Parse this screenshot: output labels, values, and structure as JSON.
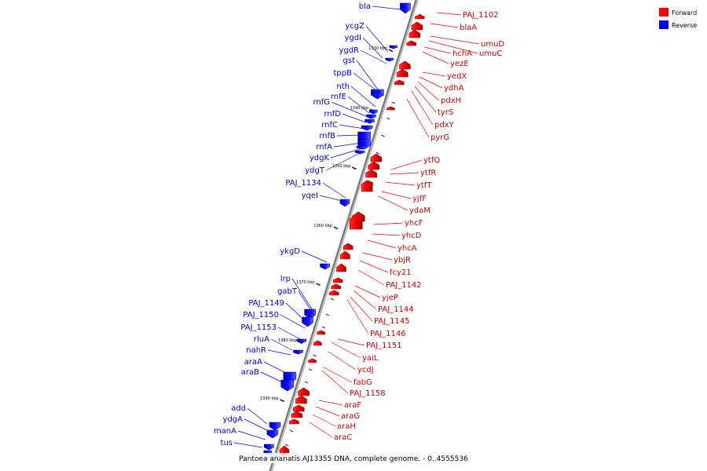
{
  "caption": "Pantoea ananatis AJ13355 DNA, complete genome. - 0..4555536",
  "legend": {
    "forward_label": "Forward",
    "reverse_label": "Reverse",
    "forward_color": "#ff0000",
    "reverse_color": "#0000ff"
  },
  "ticks": [
    "1330 kbp",
    "1340 kbp",
    "1350 kbp",
    "1360 kbp",
    "1370 kbp",
    "1380 kbp",
    "1390 kbp"
  ],
  "reverse_genes": [
    "bla",
    "ycgZ",
    "ygdI",
    "ygdR",
    "gst",
    "tppB",
    "nth",
    "rnfE",
    "rnfG",
    "rnfD",
    "rnfC",
    "rnfB",
    "rnfA",
    "ydgK",
    "ydgT",
    "PAJ_1134",
    "yqeI",
    "ykgD",
    "lrp",
    "gabT",
    "PAJ_1149",
    "PAJ_1150",
    "PAJ_1153",
    "rluA",
    "nahR",
    "araA",
    "araB",
    "add",
    "ydgA",
    "manA",
    "tus"
  ],
  "forward_genes": [
    "PAJ_1102",
    "blaA",
    "umuD",
    "umuC",
    "hchA",
    "yezE",
    "yedX",
    "ydhA",
    "pdxH",
    "tyrS",
    "pdxY",
    "pyrG",
    "ytfQ",
    "ytfR",
    "ytfT",
    "yjfF",
    "ydaM",
    "yhcF",
    "yhcD",
    "yhcA",
    "ybjR",
    "fcy21",
    "PAJ_1142",
    "yjeP",
    "PAJ_1144",
    "PAJ_1145",
    "PAJ_1146",
    "PAJ_1151",
    "yaiL",
    "ycdJ",
    "fabG",
    "PAJ_1158",
    "araF",
    "araG",
    "araH",
    "araC"
  ]
}
